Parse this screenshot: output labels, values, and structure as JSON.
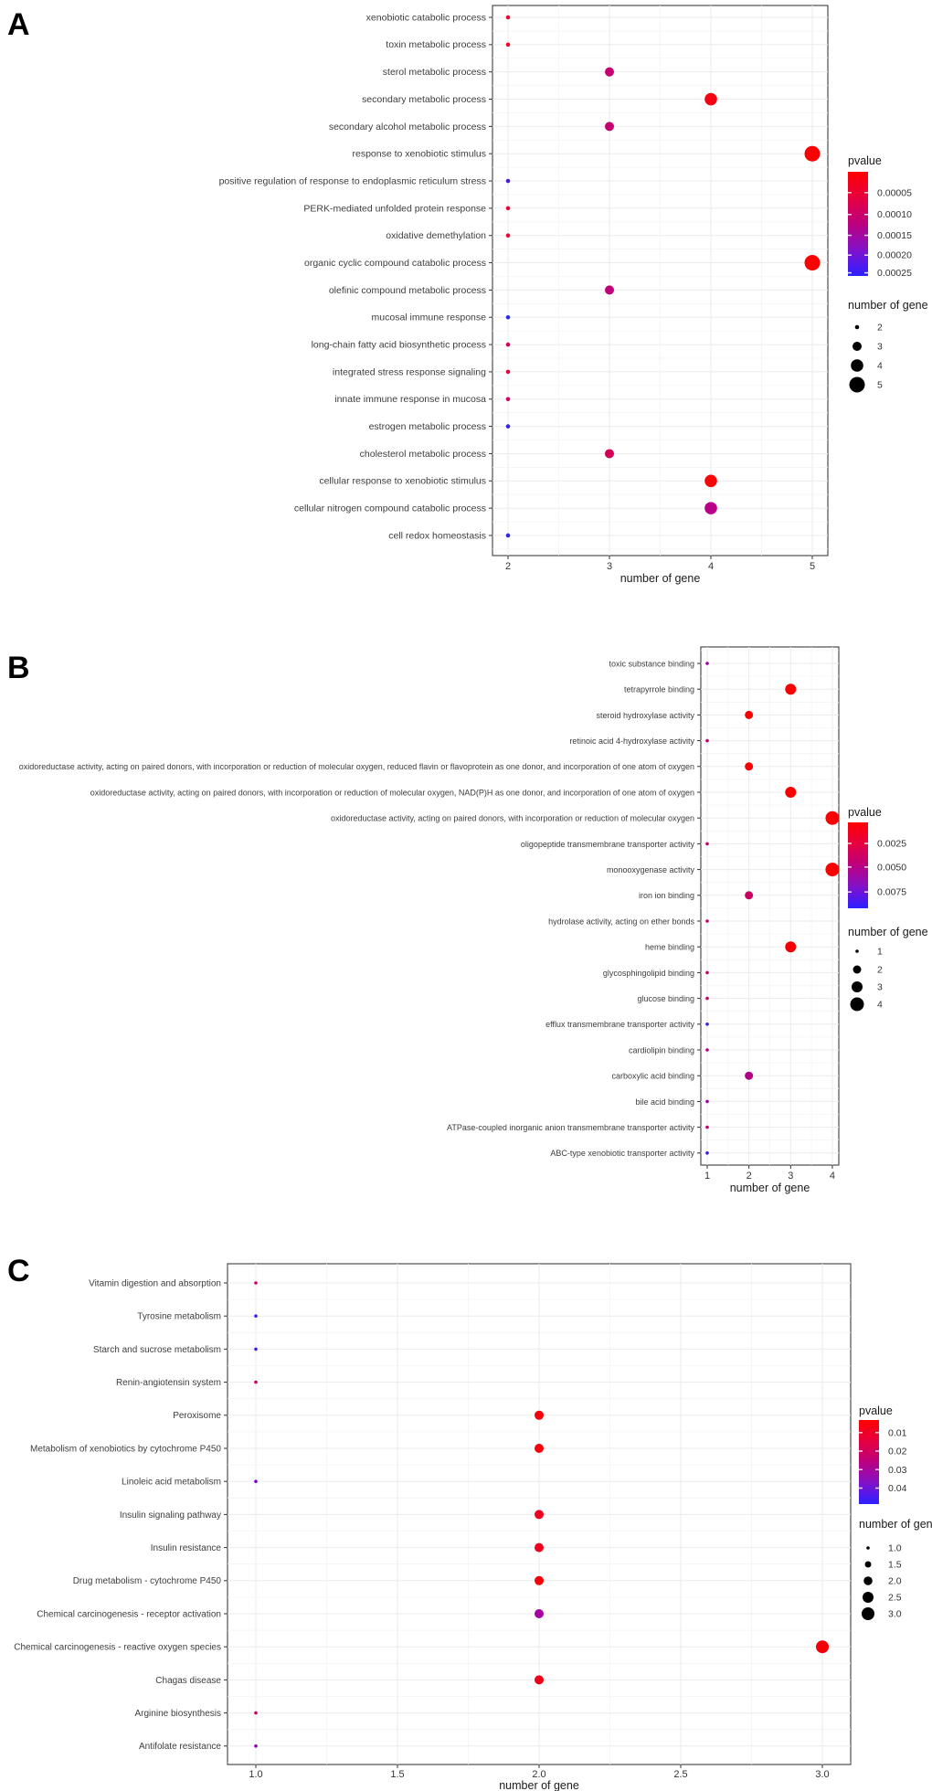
{
  "figure": {
    "panel_labels": [
      "A",
      "B",
      "C"
    ]
  },
  "chart_data": [
    {
      "type": "scatter",
      "panel_label": "A",
      "xlabel": "number of gene",
      "x_tick_values": [
        2,
        3,
        4,
        5
      ],
      "x_tick_labels": [
        "2",
        "3",
        "4",
        "5"
      ],
      "categories": [
        "xenobiotic catabolic process",
        "toxin metabolic process",
        "sterol metabolic process",
        "secondary metabolic process",
        "secondary alcohol metabolic process",
        "response to xenobiotic stimulus",
        "positive regulation of response to endoplasmic reticulum stress",
        "PERK-mediated unfolded protein response",
        "oxidative demethylation",
        "organic cyclic compound catabolic process",
        "olefinic compound metabolic process",
        "mucosal immune response",
        "long-chain fatty acid biosynthetic process",
        "integrated stress response signaling",
        "innate immune response in mucosa",
        "estrogen metabolic process",
        "cholesterol metabolic process",
        "cellular response to xenobiotic stimulus",
        "cellular nitrogen compound catabolic process",
        "cell redox homeostasis"
      ],
      "values": [
        2,
        2,
        3,
        4,
        3,
        5,
        2,
        2,
        2,
        5,
        3,
        2,
        2,
        2,
        2,
        2,
        3,
        4,
        4,
        2
      ],
      "point_colors": [
        "#ea0838",
        "#f3042a",
        "#c6006e",
        "#f20413",
        "#c40070",
        "#fa0000",
        "#4a1ad8",
        "#ee0434",
        "#f20430",
        "#fa0202",
        "#bf0078",
        "#2b2be8",
        "#d6005a",
        "#e60040",
        "#cf0062",
        "#3525e0",
        "#cf0054",
        "#f70808",
        "#ba0089",
        "#2f2ae6"
      ],
      "legend": {
        "pvalue_title": "pvalue",
        "pvalue_ticks": [
          "0.00005",
          "0.00010",
          "0.00015",
          "0.00020",
          "0.00025"
        ],
        "gradient_top": "#ff0000",
        "gradient_bottom": "#2a20ff",
        "size_title": "number of gene",
        "size_labels": [
          "2",
          "3",
          "4",
          "5"
        ]
      }
    },
    {
      "type": "scatter",
      "panel_label": "B",
      "xlabel": "number of gene",
      "x_tick_values": [
        1,
        2,
        3,
        4
      ],
      "x_tick_labels": [
        "1",
        "2",
        "3",
        "4"
      ],
      "categories": [
        "toxic substance binding",
        "tetrapyrrole binding",
        "steroid hydroxylase activity",
        "retinoic acid 4-hydroxylase activity",
        "oxidoreductase activity, acting on paired donors, with incorporation or reduction of molecular oxygen, reduced flavin or flavoprotein as one donor, and incorporation of one atom of oxygen",
        "oxidoreductase activity, acting on paired donors, with incorporation or reduction of molecular oxygen, NAD(P)H as one donor, and incorporation of one atom of oxygen",
        "oxidoreductase activity, acting on paired donors, with incorporation or reduction of molecular oxygen",
        "oligopeptide transmembrane transporter activity",
        "monooxygenase activity",
        "iron ion binding",
        "hydrolase activity, acting on ether bonds",
        "heme binding",
        "glycosphingolipid binding",
        "glucose binding",
        "efflux transmembrane transporter activity",
        "cardiolipin binding",
        "carboxylic acid binding",
        "bile acid binding",
        "ATPase-coupled inorganic anion transmembrane transporter activity",
        "ABC-type xenobiotic transporter activity"
      ],
      "values": [
        1,
        3,
        2,
        1,
        2,
        3,
        4,
        1,
        4,
        2,
        1,
        3,
        1,
        1,
        1,
        1,
        2,
        1,
        1,
        1
      ],
      "point_colors": [
        "#9c00a2",
        "#f70000",
        "#f50004",
        "#c2006e",
        "#f50004",
        "#f70000",
        "#fb0000",
        "#c4006a",
        "#fb0000",
        "#c80062",
        "#c4006a",
        "#f30006",
        "#c4006a",
        "#c4006a",
        "#3a1ede",
        "#b20084",
        "#b20086",
        "#9c009e",
        "#c0006e",
        "#3a1ede"
      ],
      "legend": {
        "pvalue_title": "pvalue",
        "pvalue_ticks": [
          "0.0025",
          "0.0050",
          "0.0075"
        ],
        "gradient_top": "#ff0000",
        "gradient_bottom": "#2a20ff",
        "size_title": "number of gene",
        "size_labels": [
          "1",
          "2",
          "3",
          "4"
        ]
      }
    },
    {
      "type": "scatter",
      "panel_label": "C",
      "xlabel": "number of gene",
      "x_tick_values": [
        1,
        1.5,
        2,
        2.5,
        3
      ],
      "x_tick_labels": [
        "1.0",
        "1.5",
        "2.0",
        "2.5",
        "3.0"
      ],
      "categories": [
        "Vitamin digestion and absorption",
        "Tyrosine metabolism",
        "Starch and sucrose metabolism",
        "Renin-angiotensin system",
        "Peroxisome",
        "Metabolism of xenobiotics by cytochrome P450",
        "Linoleic acid metabolism",
        "Insulin signaling pathway",
        "Insulin resistance",
        "Drug metabolism - cytochrome P450",
        "Chemical carcinogenesis - receptor activation",
        "Chemical carcinogenesis - reactive oxygen species",
        "Chagas disease",
        "Arginine biosynthesis",
        "Antifolate resistance"
      ],
      "values": [
        1,
        1,
        1,
        1,
        2,
        2,
        1,
        2,
        2,
        2,
        2,
        3,
        2,
        1,
        1
      ],
      "point_colors": [
        "#cc0066",
        "#3c1ede",
        "#3c1ede",
        "#cc0066",
        "#f50008",
        "#f50008",
        "#7c00c0",
        "#ee0020",
        "#ee0020",
        "#f50008",
        "#a800a4",
        "#f30008",
        "#ee0016",
        "#cc0060",
        "#8c00b0"
      ],
      "legend": {
        "pvalue_title": "pvalue",
        "pvalue_ticks": [
          "0.01",
          "0.02",
          "0.03",
          "0.04"
        ],
        "gradient_top": "#ff0000",
        "gradient_bottom": "#2a20ff",
        "size_title": "number of gene",
        "size_labels": [
          "1.0",
          "1.5",
          "2.0",
          "2.5",
          "3.0"
        ]
      }
    }
  ]
}
